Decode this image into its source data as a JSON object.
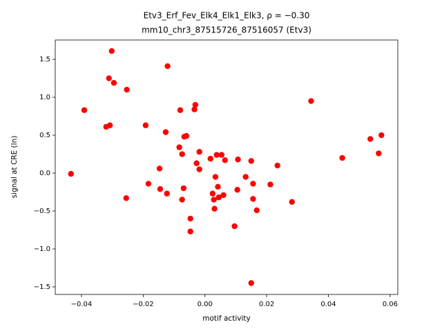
{
  "chart_data": {
    "type": "scatter",
    "title": "Etv3_Erf_Fev_Elk4_Elk1_Elk3, ρ = −0.30",
    "subtitle": "mm10_chr3_87515726_87516057 (Etv3)",
    "x_label": "motif activity",
    "y_label": "signal at CRE (ln)",
    "color": "#ff0000",
    "grid": false,
    "xlim": [
      -0.0485,
      0.0625
    ],
    "ylim": [
      -1.6,
      1.755
    ],
    "xticks": [
      {
        "value": -0.04,
        "label": "−0.04"
      },
      {
        "value": -0.02,
        "label": "−0.02"
      },
      {
        "value": 0,
        "label": "0.00"
      },
      0.02,
      0.04,
      0.06
    ],
    "yticks": [
      {
        "value": -1.5,
        "label": "−1.5"
      },
      {
        "value": -1.0,
        "label": "−1.0"
      },
      {
        "value": -0.5,
        "label": "−0.5"
      },
      {
        "value": 0,
        "label": "0.0"
      },
      0.5,
      {
        "value": 1.0,
        "label": "1.0"
      },
      1.5
    ],
    "x": [
      -0.0434,
      -0.0391,
      -0.0302,
      -0.0311,
      -0.0295,
      -0.0253,
      -0.0121,
      -0.032,
      -0.0308,
      -0.0192,
      -0.0127,
      -0.008,
      -0.0031,
      -0.0034,
      -0.0083,
      -0.0067,
      -0.006,
      -0.0074,
      -0.0018,
      -0.0147,
      -0.0183,
      -0.0145,
      -0.0255,
      -0.0123,
      -0.0069,
      -0.0074,
      -0.0047,
      -0.0047,
      -0.0027,
      -0.0018,
      0.0018,
      0.0038,
      0.0054,
      0.0065,
      0.0107,
      0.015,
      0.0034,
      0.0042,
      0.0025,
      0.0029,
      0.0045,
      0.006,
      0.0031,
      0.0096,
      0.0105,
      0.0132,
      0.0156,
      0.0156,
      0.0168,
      0.0212,
      0.0235,
      0.0282,
      0.015,
      0.0344,
      0.0445,
      0.0536,
      0.0563,
      0.0572
    ],
    "values": [
      -0.01,
      0.83,
      1.61,
      1.25,
      1.19,
      1.1,
      1.41,
      0.61,
      0.63,
      0.63,
      0.54,
      0.83,
      0.9,
      0.84,
      0.34,
      0.48,
      0.49,
      0.25,
      0.28,
      0.06,
      -0.14,
      -0.21,
      -0.33,
      -0.27,
      -0.2,
      -0.35,
      -0.6,
      -0.77,
      0.13,
      0.05,
      0.19,
      0.24,
      0.24,
      0.17,
      0.18,
      0.16,
      -0.05,
      -0.18,
      -0.27,
      -0.35,
      -0.32,
      -0.29,
      -0.47,
      -0.7,
      -0.22,
      -0.05,
      -0.14,
      -0.34,
      -0.49,
      -0.15,
      0.1,
      -0.38,
      -1.45,
      0.95,
      0.2,
      0.45,
      0.26,
      0.5
    ]
  }
}
